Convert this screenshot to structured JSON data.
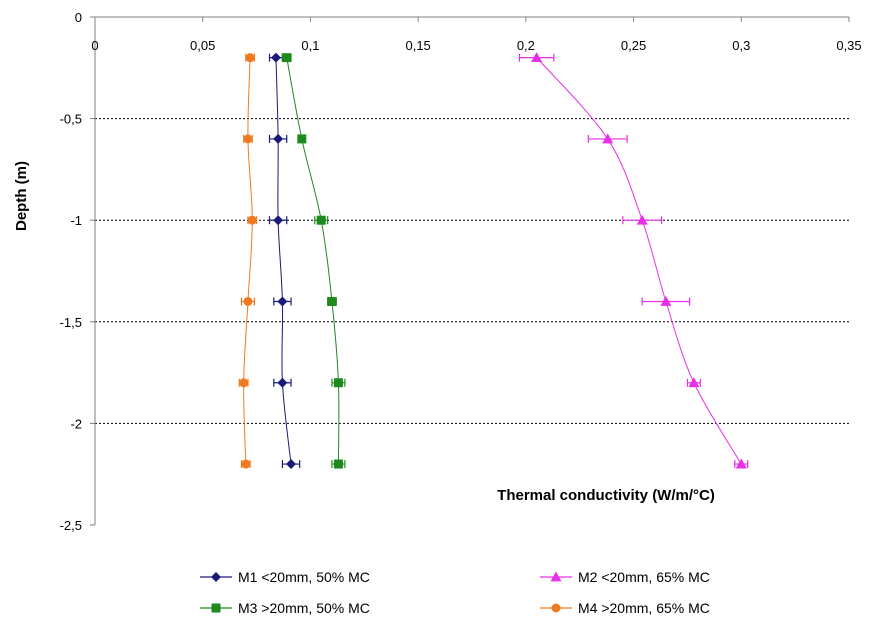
{
  "chart_data": {
    "type": "scatter",
    "title": "",
    "xlabel": "Thermal conductivity  (W/m/°C)",
    "ylabel": "Depth (m)",
    "xlim": [
      0,
      0.35
    ],
    "ylim": [
      -2.5,
      0
    ],
    "x_ticks": [
      "0",
      "0,05",
      "0,1",
      "0,15",
      "0,2",
      "0,25",
      "0,3",
      "0,35"
    ],
    "y_ticks": [
      "0",
      "-0,5",
      "-1",
      "-1,5",
      "-2",
      "-2,5"
    ],
    "x_tick_values": [
      0,
      0.05,
      0.1,
      0.15,
      0.2,
      0.25,
      0.3,
      0.35
    ],
    "y_tick_values": [
      0,
      -0.5,
      -1,
      -1.5,
      -2,
      -2.5
    ],
    "grid": "horizontal dashed at y ticks",
    "x_axis_position": "top",
    "legend_position": "bottom",
    "series": [
      {
        "name": "M1 <20mm, 50% MC",
        "color": "#1a1a7a",
        "marker": "diamond",
        "x": [
          0.084,
          0.085,
          0.085,
          0.087,
          0.087,
          0.091
        ],
        "y": [
          -0.2,
          -0.6,
          -1.0,
          -1.4,
          -1.8,
          -2.2
        ],
        "error": [
          0.003,
          0.004,
          0.004,
          0.004,
          0.004,
          0.004
        ]
      },
      {
        "name": "M2 <20mm, 65% MC",
        "color": "#e830e8",
        "marker": "triangle",
        "x": [
          0.205,
          0.238,
          0.254,
          0.265,
          0.278,
          0.3
        ],
        "y": [
          -0.2,
          -0.6,
          -1.0,
          -1.4,
          -1.8,
          -2.2
        ],
        "error": [
          0.008,
          0.009,
          0.009,
          0.011,
          0.003,
          0.003
        ]
      },
      {
        "name": "M3 >20mm, 50% MC",
        "color": "#1e8a1e",
        "marker": "square",
        "x": [
          0.089,
          0.096,
          0.105,
          0.11,
          0.113,
          0.113
        ],
        "y": [
          -0.2,
          -0.6,
          -1.0,
          -1.4,
          -1.8,
          -2.2
        ],
        "error": [
          0.002,
          0.001,
          0.003,
          0.002,
          0.003,
          0.003
        ]
      },
      {
        "name": "M4 >20mm, 65% MC",
        "color": "#f07a20",
        "marker": "circle",
        "x": [
          0.072,
          0.071,
          0.073,
          0.071,
          0.069,
          0.07
        ],
        "y": [
          -0.2,
          -0.6,
          -1.0,
          -1.4,
          -1.8,
          -2.2
        ],
        "error": [
          0.002,
          0.002,
          0.002,
          0.003,
          0.002,
          0.002
        ]
      }
    ]
  }
}
